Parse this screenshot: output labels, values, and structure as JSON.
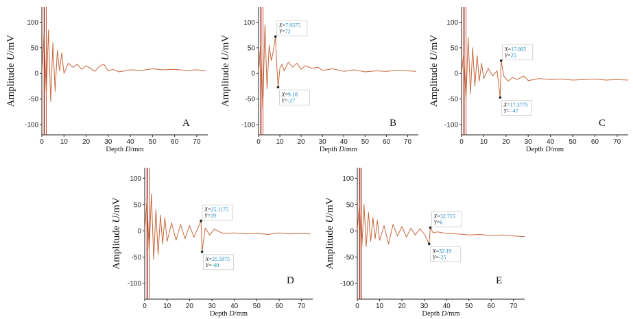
{
  "colors": {
    "signal": "#c8673a",
    "signal_gray": "#7d7d7d",
    "spike": "#a82a14",
    "axis": "#222222",
    "tip_value": "#1a88c0",
    "tip_key": "#222222"
  },
  "chart_data": [
    {
      "type": "line",
      "panel": "A",
      "xlabel": "Depth D/mm",
      "ylabel": "Amplitude U/mV",
      "xlim": [
        0,
        75
      ],
      "ylim": [
        -120,
        130
      ],
      "xticks": [
        0,
        10,
        20,
        30,
        40,
        50,
        60,
        70
      ],
      "yticks": [
        -100,
        -50,
        0,
        50,
        100
      ],
      "x": [
        0,
        1,
        2,
        3,
        4,
        5,
        6,
        7,
        8,
        9,
        10,
        12,
        14,
        16,
        18,
        20,
        22,
        24,
        26,
        28,
        30,
        32,
        35,
        40,
        45,
        50,
        55,
        60,
        65,
        70,
        74
      ],
      "y": [
        0,
        80,
        -40,
        85,
        -55,
        60,
        -35,
        45,
        5,
        40,
        0,
        20,
        12,
        18,
        8,
        15,
        10,
        4,
        14,
        18,
        5,
        8,
        3,
        7,
        6,
        9,
        7,
        8,
        6,
        7,
        5
      ],
      "annotations": []
    },
    {
      "type": "line",
      "panel": "B",
      "xlabel": "Depth D/mm",
      "ylabel": "Amplitude U/mV",
      "xlim": [
        0,
        75
      ],
      "ylim": [
        -120,
        130
      ],
      "xticks": [
        0,
        10,
        20,
        30,
        40,
        50,
        60,
        70
      ],
      "yticks": [
        -100,
        -50,
        0,
        50,
        100
      ],
      "x": [
        0,
        1,
        2,
        3,
        4,
        5,
        6,
        7,
        7.9575,
        8.5,
        9.18,
        10,
        11,
        12,
        14,
        16,
        18,
        20,
        22,
        25,
        28,
        30,
        35,
        40,
        45,
        50,
        55,
        60,
        65,
        70,
        74
      ],
      "y": [
        0,
        60,
        -70,
        95,
        -30,
        55,
        25,
        45,
        72,
        20,
        -27,
        10,
        18,
        5,
        22,
        12,
        20,
        8,
        15,
        10,
        12,
        6,
        9,
        4,
        7,
        3,
        5,
        4,
        6,
        5,
        4
      ],
      "annotations": [
        {
          "x_label": "X=7.9575",
          "y_label": "Y=72",
          "x": 7.9575,
          "y": 72,
          "placement": "upper-right"
        },
        {
          "x_label": "X=9.18",
          "y_label": "Y=-27",
          "x": 9.18,
          "y": -27,
          "placement": "lower-right"
        }
      ]
    },
    {
      "type": "line",
      "panel": "C",
      "xlabel": "Depth D/mm",
      "ylabel": "Amplitude U/mV",
      "xlim": [
        0,
        75
      ],
      "ylim": [
        -120,
        130
      ],
      "xticks": [
        0,
        10,
        20,
        30,
        40,
        50,
        60,
        70
      ],
      "yticks": [
        -100,
        -50,
        0,
        50,
        100
      ],
      "x": [
        0,
        1,
        2,
        3,
        4,
        5,
        6,
        7,
        8,
        9,
        10,
        12,
        14,
        16,
        17.3775,
        17.805,
        19,
        21,
        23,
        25,
        28,
        30,
        35,
        40,
        45,
        50,
        55,
        60,
        65,
        70,
        75
      ],
      "y": [
        0,
        40,
        -50,
        70,
        -40,
        50,
        -25,
        35,
        -15,
        20,
        -10,
        10,
        -5,
        5,
        -47,
        25,
        -5,
        -15,
        -8,
        -12,
        -5,
        -14,
        -10,
        -12,
        -11,
        -13,
        -12,
        -11,
        -13,
        -12,
        -13
      ],
      "annotations": [
        {
          "x_label": "X=17.805",
          "y_label": "Y=25",
          "x": 17.805,
          "y": 25,
          "placement": "upper-right"
        },
        {
          "x_label": "X=17.3775",
          "y_label": "Y= -47",
          "x": 17.3775,
          "y": -47,
          "placement": "lower-right"
        }
      ]
    },
    {
      "type": "line",
      "panel": "D",
      "xlabel": "Depth D/mm",
      "ylabel": "Amplitude U/mV",
      "xlim": [
        0,
        75
      ],
      "ylim": [
        -130,
        120
      ],
      "xticks": [
        0,
        10,
        20,
        30,
        40,
        50,
        60,
        70
      ],
      "yticks": [
        -100,
        -50,
        0,
        50,
        100
      ],
      "x": [
        0,
        1,
        2,
        3,
        4,
        5,
        6,
        7,
        8,
        9,
        10,
        12,
        14,
        16,
        18,
        20,
        22,
        24,
        25.1175,
        25.5975,
        27,
        29,
        31,
        35,
        40,
        45,
        50,
        55,
        60,
        65,
        70,
        74
      ],
      "y": [
        0,
        60,
        -40,
        70,
        -55,
        40,
        -45,
        30,
        -25,
        25,
        -20,
        15,
        -18,
        12,
        -15,
        10,
        -12,
        8,
        19,
        -40,
        5,
        -8,
        3,
        -5,
        -4,
        -6,
        -5,
        -7,
        -4,
        -6,
        -5,
        -6
      ],
      "annotations": [
        {
          "x_label": "X=25.1175",
          "y_label": "Y=19",
          "x": 25.1175,
          "y": 19,
          "placement": "upper-right"
        },
        {
          "x_label": "X=25.5975",
          "y_label": "Y=-40",
          "x": 25.5975,
          "y": -40,
          "placement": "lower-right"
        }
      ]
    },
    {
      "type": "line",
      "panel": "E",
      "xlabel": "Depth D/mm",
      "ylabel": "Amplitude U/mV",
      "xlim": [
        0,
        75
      ],
      "ylim": [
        -130,
        120
      ],
      "xticks": [
        0,
        10,
        20,
        30,
        40,
        50,
        60,
        70
      ],
      "yticks": [
        -100,
        -50,
        0,
        50,
        100
      ],
      "x": [
        0,
        1,
        2,
        3,
        4,
        5,
        6,
        7,
        8,
        9,
        10,
        12,
        14,
        16,
        18,
        20,
        22,
        24,
        26,
        28,
        30,
        32.19,
        32.715,
        34,
        36,
        40,
        45,
        50,
        55,
        60,
        65,
        70,
        75
      ],
      "y": [
        0,
        55,
        -35,
        50,
        -30,
        35,
        -20,
        25,
        -15,
        20,
        -18,
        10,
        -25,
        12,
        -10,
        8,
        -12,
        5,
        -8,
        4,
        -6,
        -25,
        6,
        -4,
        -2,
        -5,
        -6,
        -8,
        -7,
        -9,
        -8,
        -10,
        -11
      ],
      "annotations": [
        {
          "x_label": "X=32.715",
          "y_label": "Y=6",
          "x": 32.715,
          "y": 6,
          "placement": "upper-right"
        },
        {
          "x_label": "X=32.19",
          "y_label": "Y=-25",
          "x": 32.19,
          "y": -25,
          "placement": "lower-right"
        }
      ]
    }
  ]
}
